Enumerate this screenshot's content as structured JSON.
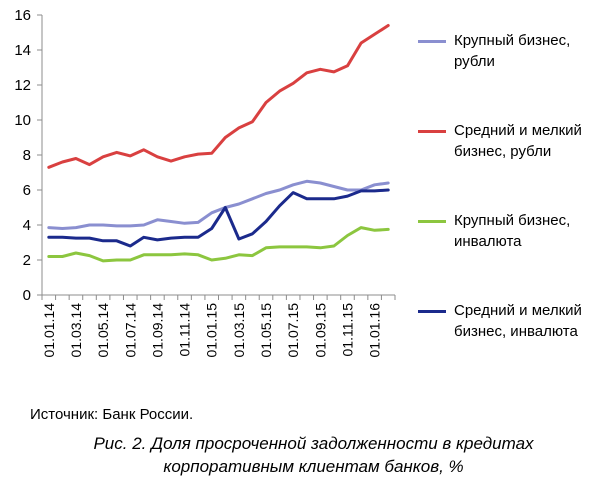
{
  "chart_data": {
    "type": "line",
    "categories": [
      "01.01.14",
      "01.02.14",
      "01.03.14",
      "01.04.14",
      "01.05.14",
      "01.06.14",
      "01.07.14",
      "01.08.14",
      "01.09.14",
      "01.10.14",
      "01.11.14",
      "01.12.14",
      "01.01.15",
      "01.02.15",
      "01.03.15",
      "01.04.15",
      "01.05.15",
      "01.06.15",
      "01.07.15",
      "01.08.15",
      "01.09.15",
      "01.10.15",
      "01.11.15",
      "01.12.15",
      "01.01.16",
      "01.02.16"
    ],
    "tick_labels": [
      "01.01.14",
      "01.03.14",
      "01.05.14",
      "01.07.14",
      "01.09.14",
      "01.11.14",
      "01.01.15",
      "01.03.15",
      "01.05.15",
      "01.07.15",
      "01.09.15",
      "01.11.15",
      "01.01.16"
    ],
    "yticks": [
      0,
      2,
      4,
      6,
      8,
      10,
      12,
      14,
      16
    ],
    "ylim": [
      0,
      16
    ],
    "grid": false,
    "legend_position": "right",
    "series": [
      {
        "name": "Крупный бизнес, рубли",
        "color": "#8a8fd0",
        "values": [
          3.85,
          3.8,
          3.85,
          4.0,
          4.0,
          3.95,
          3.95,
          4.0,
          4.3,
          4.2,
          4.1,
          4.15,
          4.7,
          5.0,
          5.2,
          5.5,
          5.8,
          6.0,
          6.3,
          6.5,
          6.4,
          6.2,
          6.0,
          6.0,
          6.3,
          6.4
        ]
      },
      {
        "name": "Средний и мелкий бизнес, рубли",
        "color": "#d94040",
        "values": [
          7.3,
          7.6,
          7.8,
          7.45,
          7.9,
          8.15,
          7.95,
          8.3,
          7.9,
          7.65,
          7.9,
          8.05,
          8.1,
          9.0,
          9.55,
          9.9,
          11.0,
          11.65,
          12.1,
          12.7,
          12.9,
          12.75,
          13.1,
          14.4,
          14.9,
          15.4
        ]
      },
      {
        "name": "Крупный бизнес, инвалюта",
        "color": "#8cc63f",
        "values": [
          2.2,
          2.2,
          2.4,
          2.25,
          1.95,
          2.0,
          2.0,
          2.3,
          2.3,
          2.3,
          2.35,
          2.3,
          2.0,
          2.1,
          2.3,
          2.25,
          2.7,
          2.75,
          2.75,
          2.75,
          2.7,
          2.8,
          3.4,
          3.85,
          3.7,
          3.75
        ]
      },
      {
        "name": "Средний и мелкий бизнес, инвалюта",
        "color": "#1b2a8c",
        "values": [
          3.3,
          3.3,
          3.25,
          3.25,
          3.1,
          3.1,
          2.8,
          3.3,
          3.15,
          3.25,
          3.3,
          3.3,
          3.8,
          5.0,
          3.2,
          3.5,
          4.2,
          5.1,
          5.85,
          5.5,
          5.5,
          5.5,
          5.65,
          5.95,
          5.95,
          6.0
        ]
      }
    ]
  },
  "legend": [
    {
      "line1": "Крупный бизнес,",
      "line2": "рубли",
      "color": "#8a8fd0"
    },
    {
      "line1": "Средний и мелкий",
      "line2": "бизнес, рубли",
      "color": "#d94040"
    },
    {
      "line1": "Крупный бизнес,",
      "line2": "инвалюта",
      "color": "#8cc63f"
    },
    {
      "line1": "Средний и мелкий",
      "line2": "бизнес, инвалюта",
      "color": "#1b2a8c"
    }
  ],
  "source": "Источник: Банк России.",
  "caption": {
    "line1": "Рис. 2. Доля просроченной задолженности в кредитах",
    "line2": "корпоративным клиентам банков, %"
  }
}
